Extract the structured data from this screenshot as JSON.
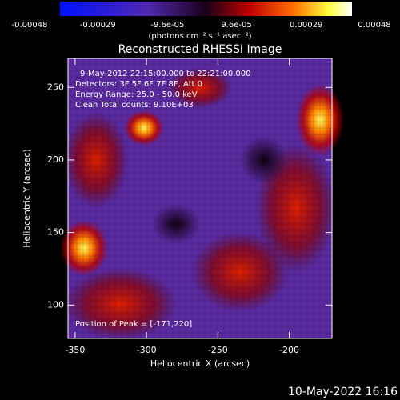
{
  "chart_data": {
    "type": "heatmap",
    "title": "Reconstructed RHESSI Image",
    "colorbar_label": "(photons cm⁻² s⁻¹ asec⁻²)",
    "clim": [
      -0.00048,
      0.00048
    ],
    "cticks": [
      -0.00048,
      -0.00029,
      {
        "value": -9.6e-05,
        "label": "-9.6e-05"
      },
      {
        "value": 9.6e-05,
        "label": "9.6e-05"
      },
      0.00029,
      0.00048
    ],
    "x_label": "Heliocentric X (arcsec)",
    "y_label": "Heliocentric Y (arcsec)",
    "xlim": [
      -355,
      -170
    ],
    "xticks": [
      -350,
      -300,
      -250,
      -200
    ],
    "ylim": [
      77,
      270
    ],
    "yticks": [
      100,
      150,
      200,
      250
    ],
    "annotations": [
      "9-May-2012 22:15:00.000 to 22:21:00.000",
      "Detectors: 3F 5F 6F 7F 8F, Att 0",
      "Energy Range: 25.0 - 50.0 keV",
      "Clean     Total counts: 9.10E+03"
    ],
    "peak_label": "Position of Peak = [-171,220]",
    "timestamp": "10-May-2022 16:16"
  }
}
